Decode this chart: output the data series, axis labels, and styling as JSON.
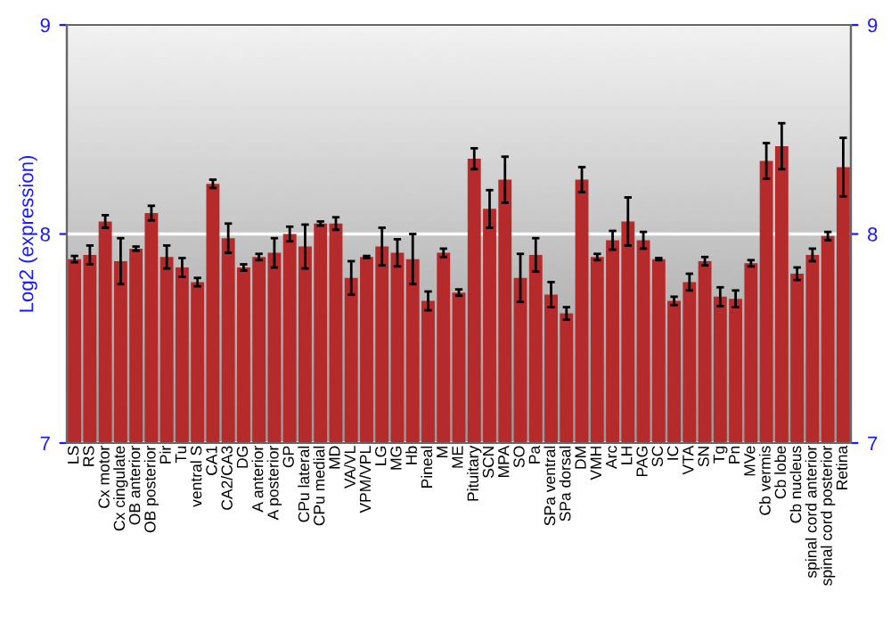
{
  "chart_data": {
    "type": "bar",
    "ylabel": "Log2 (expression)",
    "categories": [
      "LS",
      "RS",
      "Cx motor",
      "Cx cingulate",
      "OB anterior",
      "OB posterior",
      "Pir",
      "Tu",
      "ventral S",
      "CA1",
      "CA2/CA3",
      "DG",
      "A anterior",
      "A posterior",
      "GP",
      "CPu lateral",
      "CPu medial",
      "MD",
      "VA/VL",
      "VPM/VPL",
      "LG",
      "MG",
      "Hb",
      "Pineal",
      "M",
      "ME",
      "Pituitary",
      "SCN",
      "MPA",
      "SO",
      "Pa",
      "SPa ventral",
      "SPa dorsal",
      "DM",
      "VMH",
      "Arc",
      "LH",
      "PAG",
      "SC",
      "IC",
      "VTA",
      "SN",
      "Tg",
      "Pn",
      "MVe",
      "Cb vermis",
      "Cb lobe",
      "Cb nucleus",
      "spinal cord anterior",
      "spinal cord posterior",
      "Retina"
    ],
    "values": [
      7.88,
      7.9,
      8.06,
      7.87,
      7.93,
      8.1,
      7.89,
      7.84,
      7.77,
      8.24,
      7.98,
      7.84,
      7.89,
      7.91,
      8.0,
      7.94,
      8.05,
      8.05,
      7.79,
      7.89,
      7.94,
      7.91,
      7.88,
      7.68,
      7.91,
      7.72,
      8.36,
      8.12,
      8.26,
      7.79,
      7.9,
      7.71,
      7.62,
      8.26,
      7.89,
      7.97,
      8.06,
      7.97,
      7.88,
      7.68,
      7.77,
      7.87,
      7.7,
      7.69,
      7.86,
      8.35,
      8.42,
      7.81,
      7.9,
      7.99,
      8.32
    ],
    "errors": [
      0.015,
      0.045,
      0.03,
      0.11,
      0.01,
      0.035,
      0.055,
      0.045,
      0.02,
      0.02,
      0.07,
      0.015,
      0.015,
      0.07,
      0.035,
      0.105,
      0.01,
      0.03,
      0.08,
      0.005,
      0.09,
      0.065,
      0.12,
      0.045,
      0.02,
      0.015,
      0.05,
      0.09,
      0.11,
      0.115,
      0.08,
      0.06,
      0.03,
      0.06,
      0.015,
      0.045,
      0.115,
      0.04,
      0.005,
      0.02,
      0.04,
      0.02,
      0.045,
      0.04,
      0.015,
      0.085,
      0.11,
      0.03,
      0.03,
      0.02,
      0.14
    ],
    "color": "#b52a2a",
    "ylim": [
      7,
      9
    ],
    "yticks": [
      7,
      8,
      9
    ],
    "y2lim": [
      7,
      9
    ],
    "y2ticks": [
      7,
      8,
      9
    ],
    "grid": "y",
    "legend": false
  }
}
